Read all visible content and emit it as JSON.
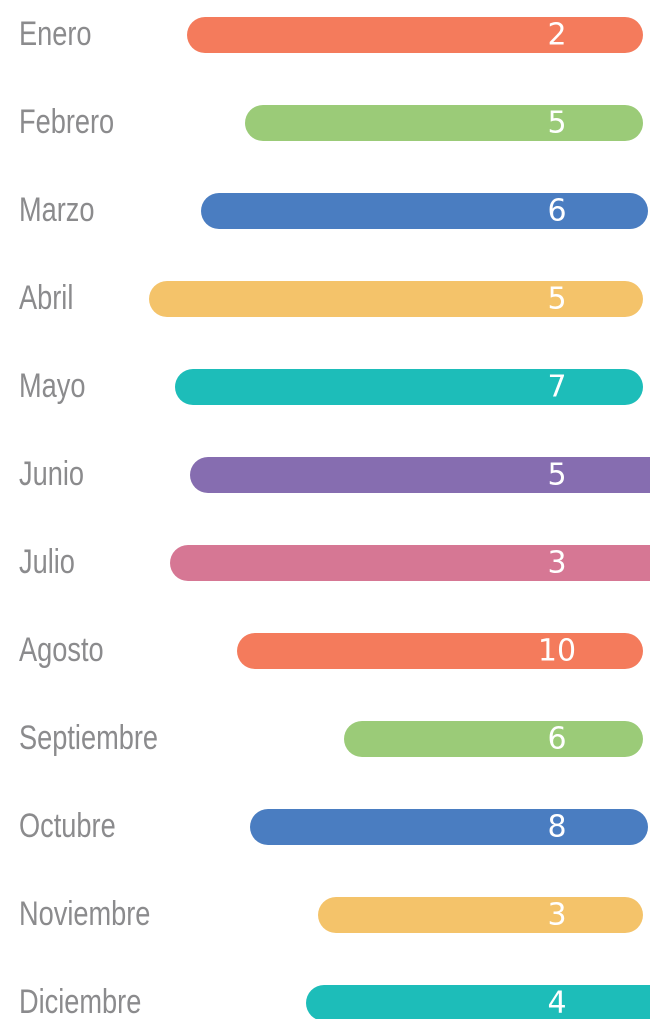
{
  "items": [
    {
      "label": "Enero",
      "value": 2,
      "color": "#f47b5c"
    },
    {
      "label": "Febrero",
      "value": 5,
      "color": "#9bcb78"
    },
    {
      "label": "Marzo",
      "value": 6,
      "color": "#4a7dc1"
    },
    {
      "label": "Abril",
      "value": 5,
      "color": "#f4c36a"
    },
    {
      "label": "Mayo",
      "value": 7,
      "color": "#1dbdb9"
    },
    {
      "label": "Junio",
      "value": 5,
      "color": "#866db0"
    },
    {
      "label": "Julio",
      "value": 3,
      "color": "#d67794"
    },
    {
      "label": "Agosto",
      "value": 10,
      "color": "#f47b5c"
    },
    {
      "label": "Septiembre",
      "value": 6,
      "color": "#9bcb78"
    },
    {
      "label": "Octubre",
      "value": 8,
      "color": "#4a7dc1"
    },
    {
      "label": "Noviembre",
      "value": 3,
      "color": "#f4c36a"
    },
    {
      "label": "Diciembre",
      "value": 4,
      "color": "#1dbdb9"
    }
  ]
}
